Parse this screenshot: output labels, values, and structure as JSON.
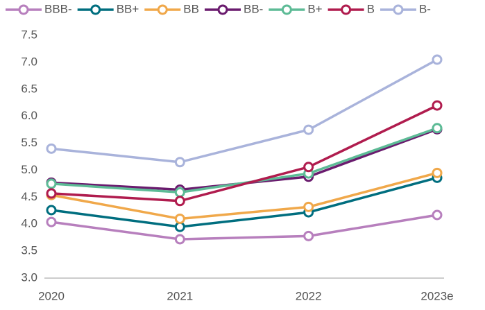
{
  "chart_data": {
    "type": "line",
    "categories": [
      "2020",
      "2021",
      "2022",
      "2023e"
    ],
    "series": [
      {
        "name": "BBB-",
        "color": "#b77fbd",
        "values": [
          4.04,
          3.72,
          3.78,
          4.17
        ]
      },
      {
        "name": "BB+",
        "color": "#006e7f",
        "values": [
          4.26,
          3.95,
          4.22,
          4.86
        ]
      },
      {
        "name": "BB",
        "color": "#f0a84a",
        "values": [
          4.54,
          4.1,
          4.32,
          4.95
        ]
      },
      {
        "name": "BB-",
        "color": "#6a1b6e",
        "values": [
          4.77,
          4.64,
          4.88,
          5.76
        ]
      },
      {
        "name": "B+",
        "color": "#5dbb96",
        "values": [
          4.75,
          4.59,
          4.94,
          5.78
        ]
      },
      {
        "name": "B",
        "color": "#b01c4e",
        "values": [
          4.57,
          4.43,
          5.06,
          6.2
        ]
      },
      {
        "name": "B-",
        "color": "#a9b3db",
        "values": [
          5.4,
          5.15,
          5.75,
          7.05
        ]
      }
    ],
    "ylim": [
      3,
      7.5
    ],
    "yticks": [
      {
        "value": 3,
        "label": "3.0"
      },
      3.5,
      {
        "value": 4,
        "label": "4.0"
      },
      4.5,
      {
        "value": 5,
        "label": "5.0"
      },
      5.5,
      {
        "value": 6,
        "label": "6.0"
      },
      6.5,
      {
        "value": 7,
        "label": "7.0"
      },
      7.5
    ],
    "legend": "top"
  }
}
